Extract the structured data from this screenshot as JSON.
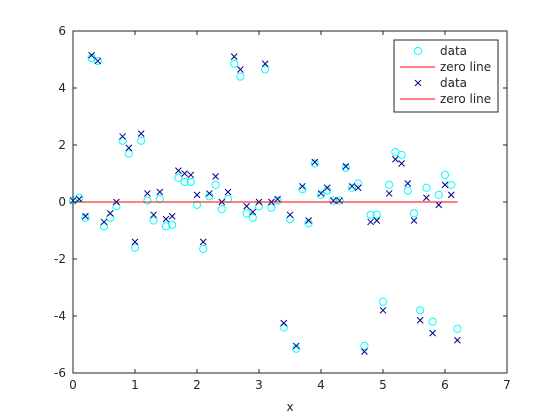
{
  "chart_data": {
    "type": "scatter",
    "title": "",
    "xlabel": "x",
    "ylabel": "",
    "xlim": [
      0,
      7
    ],
    "ylim": [
      -6,
      6
    ],
    "xticks": [
      "0",
      "1",
      "2",
      "3",
      "4",
      "5",
      "6",
      "7"
    ],
    "yticks": [
      "-6",
      "-4",
      "-2",
      "0",
      "2",
      "4",
      "6"
    ],
    "grid": false,
    "legend_position": "top-right",
    "colors": {
      "circle": "#00ffff",
      "cross": "#00008b",
      "line": "#ff0000"
    },
    "series": [
      {
        "name": "data",
        "marker": "circle",
        "color": "#00ffff",
        "x": [
          0.0,
          0.1,
          0.2,
          0.3,
          0.4,
          0.5,
          0.6,
          0.7,
          0.8,
          0.9,
          1.0,
          1.1,
          1.2,
          1.3,
          1.4,
          1.5,
          1.6,
          1.7,
          1.8,
          1.9,
          2.0,
          2.1,
          2.2,
          2.3,
          2.4,
          2.5,
          2.6,
          2.7,
          2.8,
          2.9,
          3.0,
          3.1,
          3.2,
          3.3,
          3.4,
          3.5,
          3.6,
          3.7,
          3.8,
          3.9,
          4.0,
          4.1,
          4.2,
          4.3,
          4.4,
          4.5,
          4.6,
          4.7,
          4.8,
          4.9,
          5.0,
          5.1,
          5.2,
          5.3,
          5.4,
          5.5,
          5.6,
          5.7,
          5.8,
          5.9,
          6.0,
          6.1,
          6.2
        ],
        "y": [
          0.05,
          0.15,
          -0.55,
          5.05,
          4.95,
          -0.85,
          -0.55,
          -0.15,
          2.15,
          1.7,
          -1.6,
          2.15,
          0.05,
          -0.65,
          0.1,
          -0.85,
          -0.8,
          0.85,
          0.7,
          0.7,
          -0.1,
          -1.65,
          0.2,
          0.6,
          -0.25,
          0.1,
          4.85,
          4.4,
          -0.4,
          -0.55,
          -0.15,
          4.65,
          -0.2,
          0.05,
          -4.4,
          -0.6,
          -5.15,
          0.45,
          -0.75,
          1.35,
          0.25,
          0.4,
          0.05,
          0.05,
          1.2,
          0.5,
          0.65,
          -5.05,
          -0.45,
          -0.45,
          -3.5,
          0.6,
          1.75,
          1.65,
          0.4,
          -0.4,
          -3.8,
          0.5,
          -4.2,
          0.25,
          0.95,
          0.6,
          -4.45
        ]
      },
      {
        "name": "zero line",
        "type": "line",
        "color": "#ff0000",
        "x": [
          0,
          6.2
        ],
        "y": [
          0,
          0
        ]
      },
      {
        "name": "data",
        "marker": "cross",
        "color": "#00008b",
        "x": [
          0.0,
          0.1,
          0.2,
          0.3,
          0.4,
          0.5,
          0.6,
          0.7,
          0.8,
          0.9,
          1.0,
          1.1,
          1.2,
          1.3,
          1.4,
          1.5,
          1.6,
          1.7,
          1.8,
          1.9,
          2.0,
          2.1,
          2.2,
          2.3,
          2.4,
          2.5,
          2.6,
          2.7,
          2.8,
          2.9,
          3.0,
          3.1,
          3.2,
          3.3,
          3.4,
          3.5,
          3.6,
          3.7,
          3.8,
          3.9,
          4.0,
          4.1,
          4.2,
          4.3,
          4.4,
          4.5,
          4.6,
          4.7,
          4.8,
          4.9,
          5.0,
          5.1,
          5.2,
          5.3,
          5.4,
          5.5,
          5.6,
          5.7,
          5.8,
          5.9,
          6.0,
          6.1,
          6.2
        ],
        "y": [
          0.05,
          0.1,
          -0.5,
          5.15,
          4.95,
          -0.7,
          -0.4,
          0.0,
          2.3,
          1.9,
          -1.4,
          2.4,
          0.3,
          -0.45,
          0.35,
          -0.6,
          -0.5,
          1.1,
          1.0,
          0.95,
          0.25,
          -1.4,
          0.3,
          0.9,
          0.0,
          0.35,
          5.1,
          4.65,
          -0.15,
          -0.35,
          0.0,
          4.85,
          0.0,
          0.1,
          -4.25,
          -0.45,
          -5.05,
          0.55,
          -0.65,
          1.4,
          0.3,
          0.5,
          0.05,
          0.05,
          1.25,
          0.55,
          0.5,
          -5.25,
          -0.7,
          -0.65,
          -3.8,
          0.3,
          1.5,
          1.35,
          0.65,
          -0.65,
          -4.15,
          0.15,
          -4.6,
          -0.1,
          0.6,
          0.25,
          -4.85
        ]
      },
      {
        "name": "zero line",
        "type": "line",
        "color": "#ff0000",
        "x": [
          0,
          6.2
        ],
        "y": [
          0,
          0
        ]
      }
    ]
  }
}
